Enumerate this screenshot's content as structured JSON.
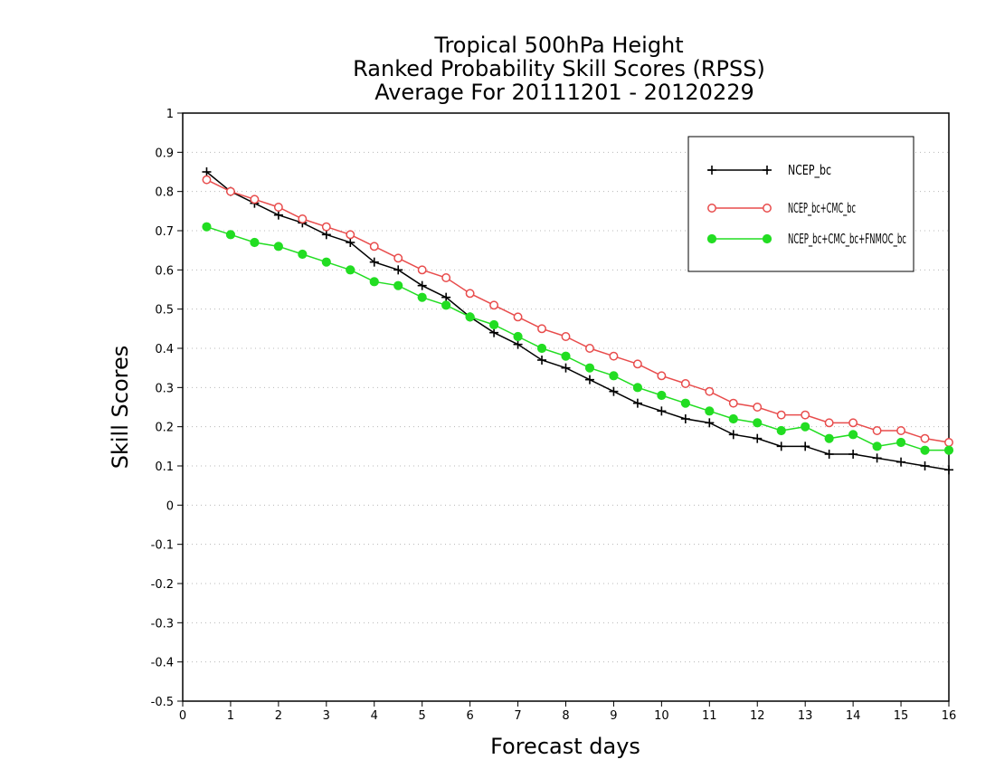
{
  "chart_data": {
    "type": "line",
    "title_lines": [
      "Tropical 500hPa Height",
      "Ranked Probability Skill Scores (RPSS)",
      "Average For 20111201 - 20120229"
    ],
    "xlabel": "Forecast days",
    "ylabel": "Skill Scores",
    "xlim": [
      0,
      16
    ],
    "ylim": [
      -0.5,
      1
    ],
    "xticks": [
      "0",
      "1",
      "2",
      "3",
      "4",
      "5",
      "6",
      "7",
      "8",
      "9",
      "10",
      "11",
      "12",
      "13",
      "14",
      "15",
      "16"
    ],
    "yticks": [
      "-0.5",
      "-0.4",
      "-0.3",
      "-0.2",
      "-0.1",
      "0",
      "0.1",
      "0.2",
      "0.3",
      "0.4",
      "0.5",
      "0.6",
      "0.7",
      "0.8",
      "0.9",
      "1"
    ],
    "grid": true,
    "legend_position": "top-right",
    "x": [
      0.5,
      1,
      1.5,
      2,
      2.5,
      3,
      3.5,
      4,
      4.5,
      5,
      5.5,
      6,
      6.5,
      7,
      7.5,
      8,
      8.5,
      9,
      9.5,
      10,
      10.5,
      11,
      11.5,
      12,
      12.5,
      13,
      13.5,
      14,
      14.5,
      15,
      15.5,
      16
    ],
    "series": [
      {
        "name": "NCEP_bc",
        "color": "#000000",
        "marker": "plus",
        "values": [
          0.85,
          0.8,
          0.77,
          0.74,
          0.72,
          0.69,
          0.67,
          0.62,
          0.6,
          0.56,
          0.53,
          0.48,
          0.44,
          0.41,
          0.37,
          0.35,
          0.32,
          0.29,
          0.26,
          0.24,
          0.22,
          0.21,
          0.18,
          0.17,
          0.15,
          0.15,
          0.13,
          0.13,
          0.12,
          0.11,
          0.1,
          0.09
        ]
      },
      {
        "name": "NCEP_bc+CMC_bc",
        "color": "#e84c4c",
        "marker": "open-circle",
        "values": [
          0.83,
          0.8,
          0.78,
          0.76,
          0.73,
          0.71,
          0.69,
          0.66,
          0.63,
          0.6,
          0.58,
          0.54,
          0.51,
          0.48,
          0.45,
          0.43,
          0.4,
          0.38,
          0.36,
          0.33,
          0.31,
          0.29,
          0.26,
          0.25,
          0.23,
          0.23,
          0.21,
          0.21,
          0.19,
          0.19,
          0.17,
          0.16
        ]
      },
      {
        "name": "NCEP_bc+CMC_bc+FNMOC_bc",
        "color": "#22dd22",
        "marker": "filled-circle",
        "values": [
          0.71,
          0.69,
          0.67,
          0.66,
          0.64,
          0.62,
          0.6,
          0.57,
          0.56,
          0.53,
          0.51,
          0.48,
          0.46,
          0.43,
          0.4,
          0.38,
          0.35,
          0.33,
          0.3,
          0.28,
          0.26,
          0.24,
          0.22,
          0.21,
          0.19,
          0.2,
          0.17,
          0.18,
          0.15,
          0.16,
          0.14,
          0.14
        ]
      }
    ]
  }
}
